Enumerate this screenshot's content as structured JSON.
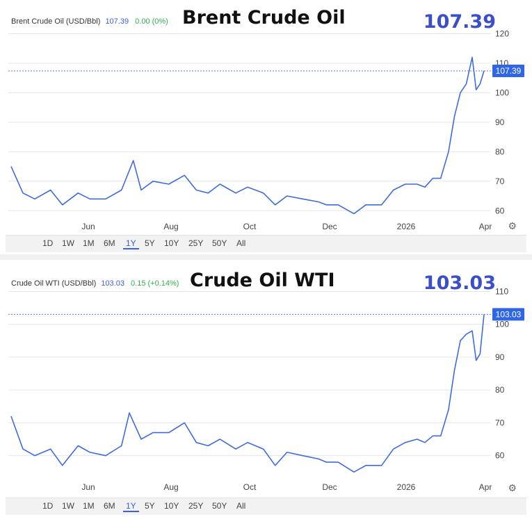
{
  "range_buttons": [
    "1D",
    "1W",
    "1M",
    "6M",
    "1Y",
    "5Y",
    "10Y",
    "25Y",
    "50Y",
    "All"
  ],
  "active_range": "1Y",
  "x_ticks": [
    "Jun",
    "Aug",
    "Oct",
    "Dec",
    "2026",
    "Apr"
  ],
  "colors": {
    "line": "#3d6be0",
    "price_tag": "#2f66e6",
    "change": "#2fb14a",
    "big_price": "#3b4fc9"
  },
  "brent": {
    "info_label": "Brent Crude Oil (USD/Bbl)",
    "info_price": "107.39",
    "info_change": "0.00 (0%)",
    "big_title": "Brent Crude Oil",
    "big_price": "107.39",
    "tag_value": "107.39"
  },
  "wti": {
    "info_label": "Crude Oil WTI (USD/Bbl)",
    "info_price": "103.03",
    "info_change": "0.15 (+0.14%)",
    "big_title": "Crude Oil WTI",
    "big_price": "103.03",
    "tag_value": "103.03"
  },
  "chart_data": [
    {
      "type": "line",
      "title": "Brent Crude Oil",
      "series": [
        {
          "name": "Brent Crude Oil (USD/Bbl)",
          "x_months": [
            0,
            0.3,
            0.6,
            1.0,
            1.3,
            1.7,
            2.0,
            2.4,
            2.8,
            3.1,
            3.3,
            3.6,
            4.0,
            4.4,
            4.7,
            5.0,
            5.3,
            5.7,
            6.0,
            6.4,
            6.7,
            7.0,
            7.4,
            7.8,
            8.0,
            8.3,
            8.7,
            9.0,
            9.4,
            9.7,
            10.0,
            10.3,
            10.5,
            10.7,
            10.9,
            11.1,
            11.25,
            11.4,
            11.55,
            11.7,
            11.8,
            11.9,
            12.0
          ],
          "y": [
            75,
            66,
            64,
            67,
            62,
            66,
            64,
            64,
            67,
            77,
            67,
            70,
            69,
            72,
            67,
            66,
            69,
            66,
            68,
            66,
            62,
            65,
            64,
            63,
            62,
            62,
            59,
            62,
            62,
            67,
            69,
            69,
            68,
            71,
            71,
            80,
            92,
            100,
            103,
            112,
            101,
            103,
            107.39
          ]
        }
      ],
      "y_ticks": [
        60,
        70,
        80,
        90,
        100,
        110,
        120
      ],
      "ylim": [
        57,
        122
      ]
    },
    {
      "type": "line",
      "title": "Crude Oil WTI",
      "series": [
        {
          "name": "Crude Oil WTI (USD/Bbl)",
          "x_months": [
            0,
            0.3,
            0.6,
            1.0,
            1.3,
            1.7,
            2.0,
            2.4,
            2.8,
            3.0,
            3.3,
            3.6,
            4.0,
            4.4,
            4.7,
            5.0,
            5.3,
            5.7,
            6.0,
            6.4,
            6.7,
            7.0,
            7.4,
            7.8,
            8.0,
            8.3,
            8.7,
            9.0,
            9.4,
            9.7,
            10.0,
            10.3,
            10.5,
            10.7,
            10.9,
            11.1,
            11.25,
            11.4,
            11.55,
            11.7,
            11.8,
            11.9,
            12.0
          ],
          "y": [
            72,
            62,
            60,
            62,
            57,
            63,
            61,
            60,
            63,
            73,
            65,
            67,
            67,
            70,
            64,
            63,
            65,
            62,
            64,
            62,
            57,
            61,
            60,
            59,
            58,
            58,
            55,
            57,
            57,
            62,
            64,
            65,
            64,
            66,
            66,
            74,
            86,
            95,
            97,
            98,
            89,
            91,
            103.03
          ]
        }
      ],
      "y_ticks": [
        60,
        70,
        80,
        90,
        100,
        110
      ],
      "ylim": [
        54,
        112
      ]
    }
  ]
}
